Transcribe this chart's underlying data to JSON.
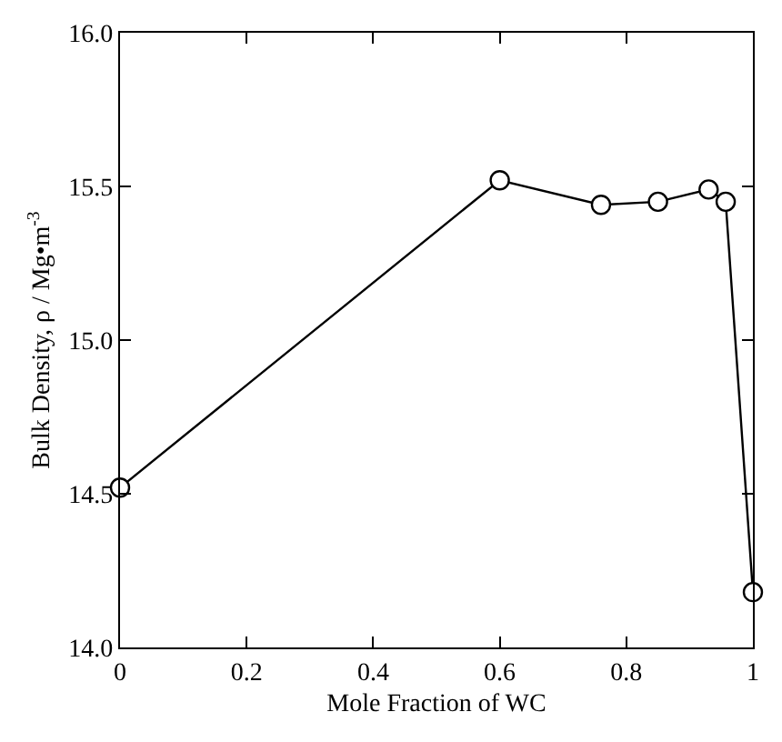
{
  "chart_data": {
    "type": "line",
    "xlabel": "Mole Fraction of WC",
    "ylabel": "Bulk Density, ρ / Mg•m$^{-3}$",
    "x": [
      0,
      0.6,
      0.76,
      0.85,
      0.93,
      0.957,
      1.0
    ],
    "series": [
      {
        "color": "#000000",
        "values": [
          14.52,
          15.52,
          15.44,
          15.45,
          15.49,
          15.45,
          14.18
        ]
      }
    ],
    "xlim": [
      0,
      1
    ],
    "xticks": [
      0,
      0.2,
      0.4,
      0.6,
      0.8,
      1
    ],
    "ylim": [
      14,
      16
    ],
    "yticks": [
      {
        "value": 14,
        "label": "14.0"
      },
      {
        "value": 14.5,
        "label": "14.5"
      },
      {
        "value": 15,
        "label": "15.0"
      },
      {
        "value": 15.5,
        "label": "15.5"
      },
      {
        "value": 16,
        "label": "16.0"
      }
    ],
    "marker": "circle",
    "line_style": "solid",
    "legend": false
  }
}
